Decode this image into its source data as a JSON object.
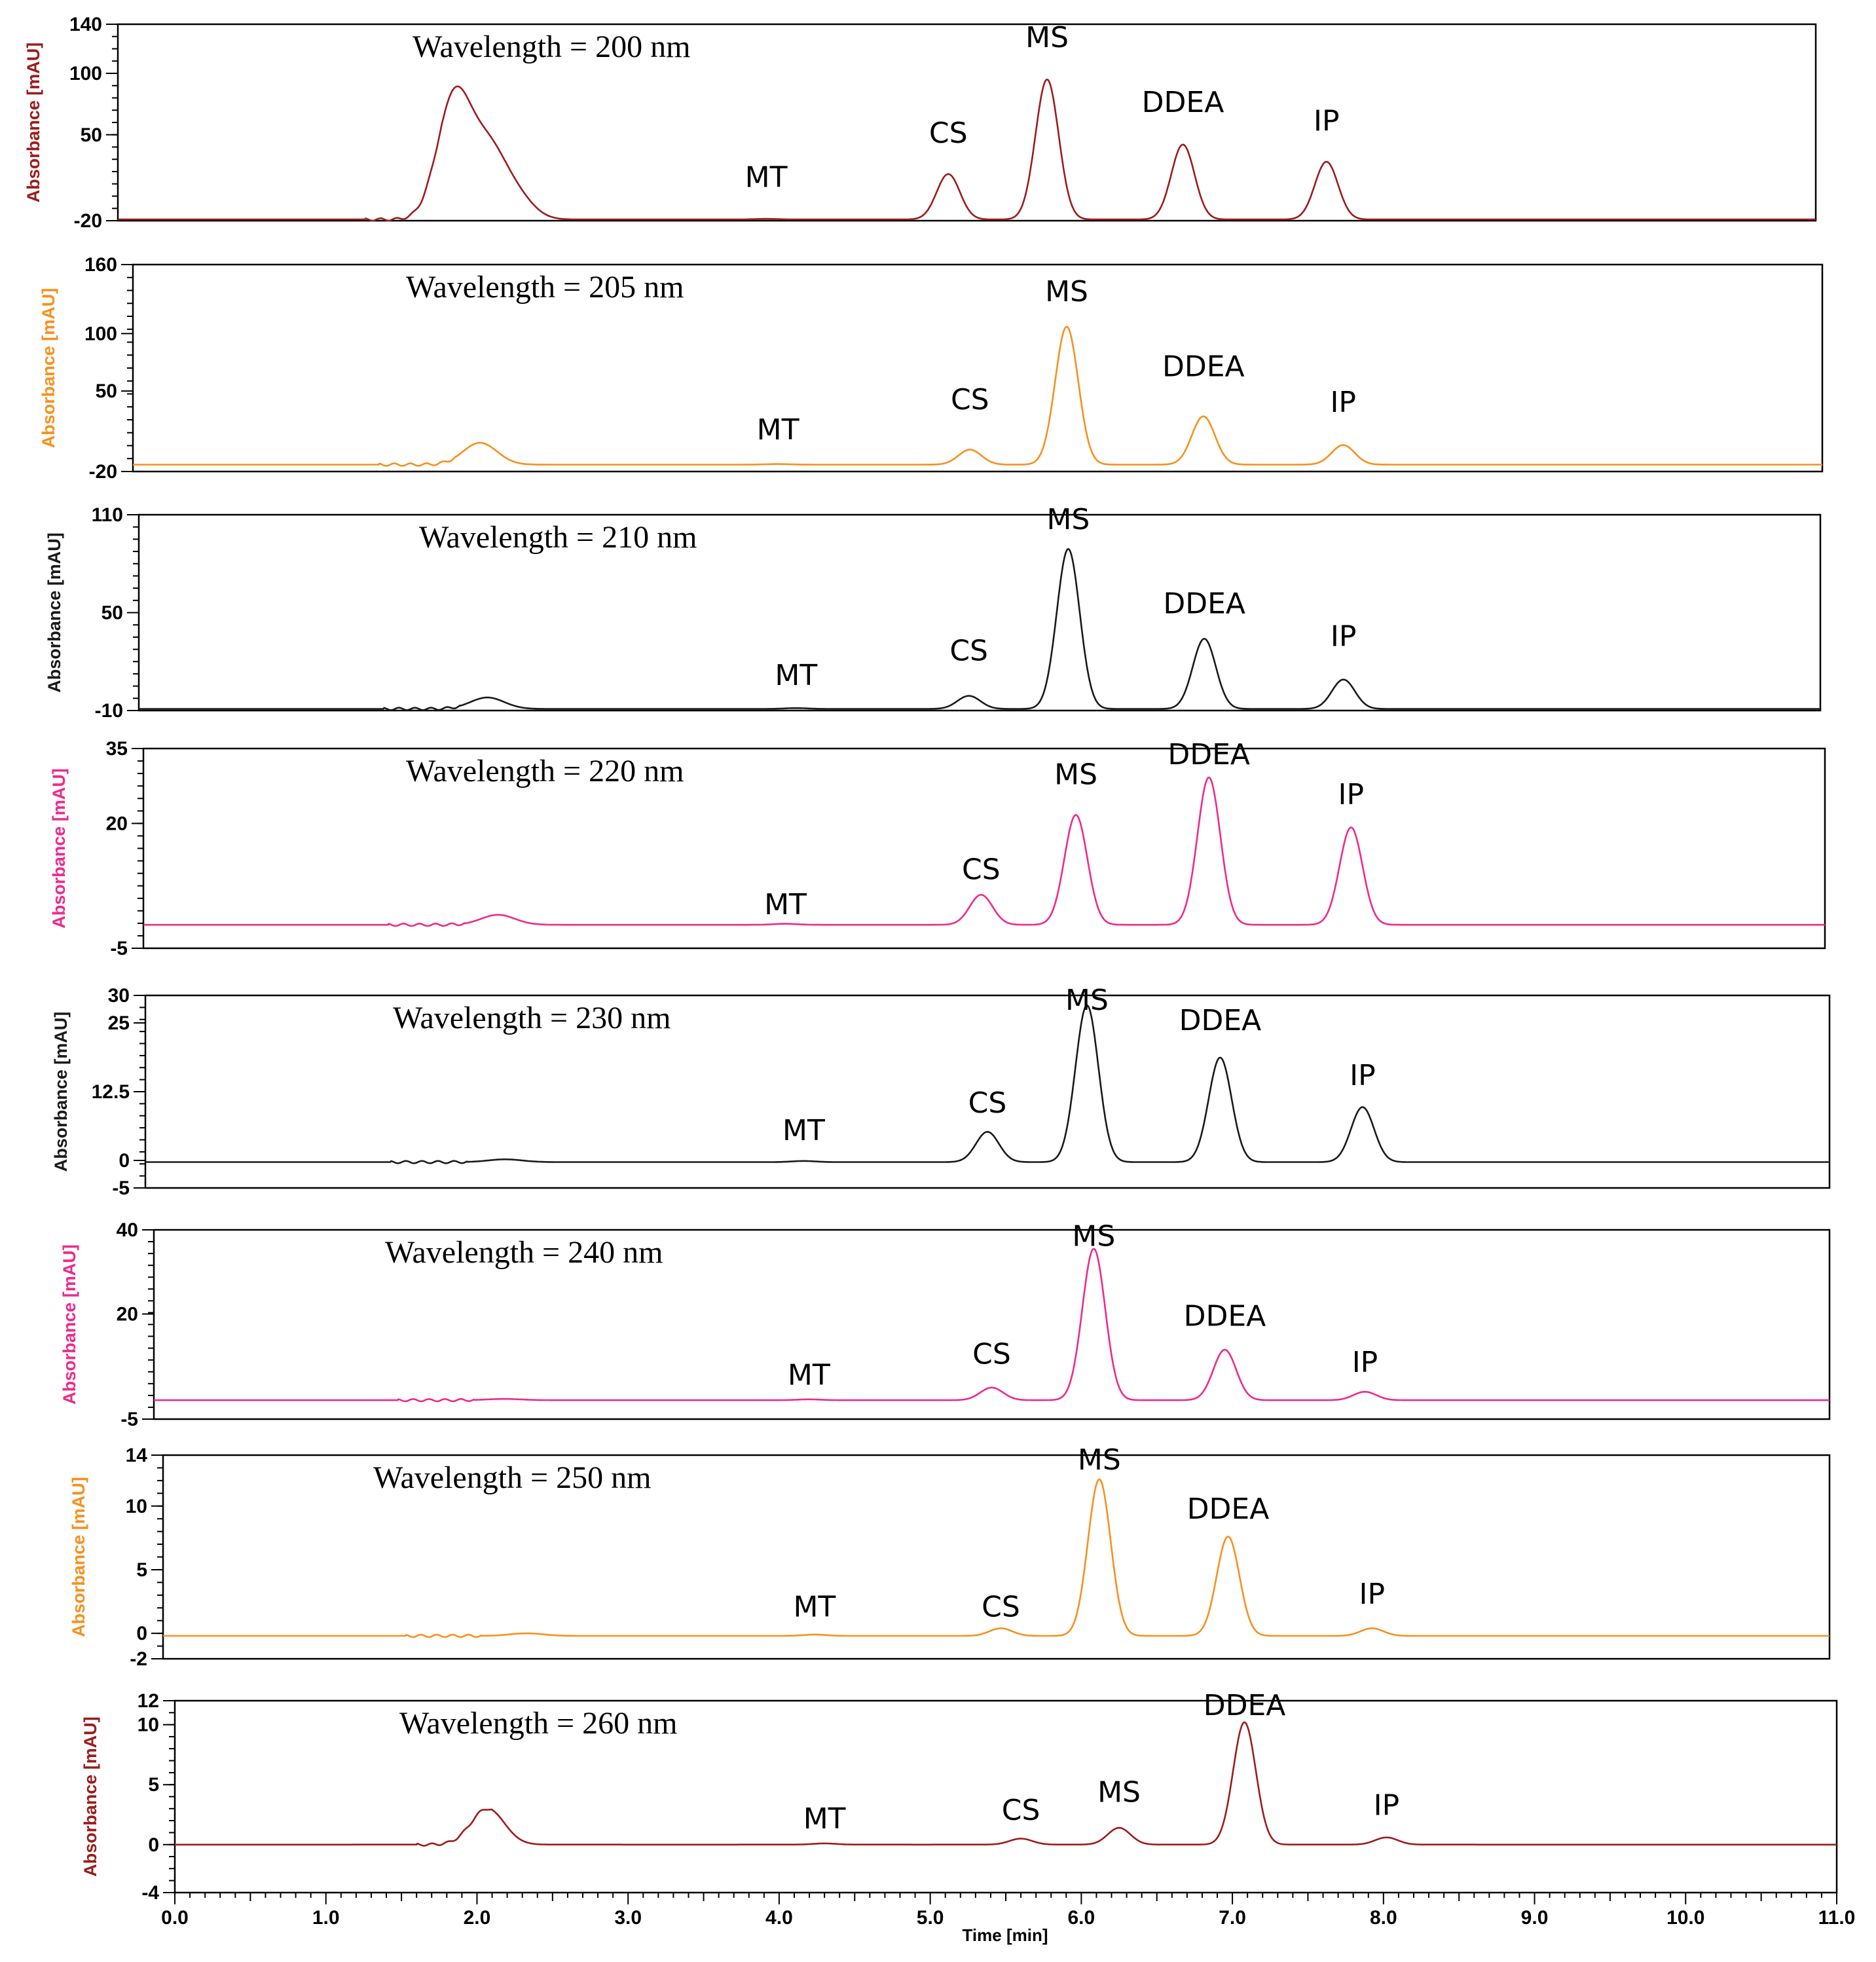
{
  "chart_data": {
    "type": "line",
    "xlabel": "Time [min]",
    "xlim": [
      0,
      11
    ],
    "xticks": [
      "0.0",
      "1.0",
      "2.0",
      "3.0",
      "4.0",
      "5.0",
      "6.0",
      "7.0",
      "8.0",
      "9.0",
      "10.0",
      "11.0"
    ],
    "panels": [
      {
        "title": "Wavelength = 200 nm",
        "ylabel": "Absorbance [mAU]",
        "color": "#9b1c1c",
        "ylim": [
          -20,
          140
        ],
        "yticks": [
          {
            "value": 140,
            "label": "140"
          },
          {
            "value": 100,
            "label": "100"
          },
          {
            "value": 50,
            "label": "50"
          },
          {
            "value": -20,
            "label": "-20"
          }
        ],
        "baseline": -19,
        "peaks": [
          {
            "name": "MT",
            "rt": 4.2,
            "height": 0.5,
            "label_height": 0
          },
          {
            "name": "CS",
            "rt": 5.38,
            "height": 37,
            "label_height": 36
          },
          {
            "name": "MS",
            "rt": 6.02,
            "height": 114,
            "label_height": 114
          },
          {
            "name": "DDEA",
            "rt": 6.9,
            "height": 61,
            "label_height": 61
          },
          {
            "name": "IP",
            "rt": 7.83,
            "height": 47,
            "label_height": 46
          }
        ],
        "solvent_front": [
          {
            "rt": 2.18,
            "height": 100
          },
          {
            "rt": 2.4,
            "height": 52
          },
          {
            "rt": 2.58,
            "height": 18
          }
        ]
      },
      {
        "title": "Wavelength = 205 nm",
        "ylabel": "Absorbance [mAU]",
        "color": "#f5911e",
        "ylim": [
          -20,
          160
        ],
        "yticks": [
          {
            "value": 160,
            "label": "160"
          },
          {
            "value": 100,
            "label": "100"
          },
          {
            "value": 50,
            "label": "50"
          },
          {
            "value": -20,
            "label": "-20"
          }
        ],
        "baseline": -14,
        "peaks": [
          {
            "name": "MT",
            "rt": 4.2,
            "height": 0.5,
            "label_height": 0
          },
          {
            "name": "CS",
            "rt": 5.45,
            "height": 13,
            "label_height": 26
          },
          {
            "name": "MS",
            "rt": 6.08,
            "height": 120,
            "label_height": 120
          },
          {
            "name": "DDEA",
            "rt": 6.97,
            "height": 42,
            "label_height": 55
          },
          {
            "name": "IP",
            "rt": 7.88,
            "height": 17,
            "label_height": 24
          }
        ],
        "solvent_front": [
          {
            "rt": 2.26,
            "height": 19
          }
        ]
      },
      {
        "title": "Wavelength = 210 nm",
        "ylabel": "Absorbance [mAU]",
        "color": "#1a1a1a",
        "ylim": [
          -10,
          110
        ],
        "yticks": [
          {
            "value": 110,
            "label": "110"
          },
          {
            "value": 50,
            "label": "50"
          },
          {
            "value": -10,
            "label": "-10"
          }
        ],
        "baseline": -9,
        "peaks": [
          {
            "name": "MT",
            "rt": 4.3,
            "height": 0.5,
            "label_height": 0
          },
          {
            "name": "CS",
            "rt": 5.43,
            "height": 8,
            "label_height": 15
          },
          {
            "name": "MS",
            "rt": 6.08,
            "height": 98,
            "label_height": 96
          },
          {
            "name": "DDEA",
            "rt": 6.97,
            "height": 43,
            "label_height": 44
          },
          {
            "name": "IP",
            "rt": 7.88,
            "height": 18,
            "label_height": 24
          }
        ],
        "solvent_front": [
          {
            "rt": 2.28,
            "height": 7
          }
        ]
      },
      {
        "title": "Wavelength = 220 nm",
        "ylabel": "Absorbance [mAU]",
        "color": "#ee2a8a",
        "ylim": [
          -5,
          35
        ],
        "yticks": [
          {
            "value": 35,
            "label": "35"
          },
          {
            "value": 20,
            "label": "20"
          },
          {
            "value": -5,
            "label": "-5"
          }
        ],
        "baseline": -0.3,
        "peaks": [
          {
            "name": "MT",
            "rt": 4.2,
            "height": 0.2,
            "label_height": 0
          },
          {
            "name": "CS",
            "rt": 5.48,
            "height": 6,
            "label_height": 7
          },
          {
            "name": "MS",
            "rt": 6.1,
            "height": 22,
            "label_height": 26
          },
          {
            "name": "DDEA",
            "rt": 6.97,
            "height": 29.5,
            "label_height": 30
          },
          {
            "name": "IP",
            "rt": 7.9,
            "height": 19.5,
            "label_height": 22
          }
        ],
        "solvent_front": [
          {
            "rt": 2.32,
            "height": 2
          }
        ]
      },
      {
        "title": "Wavelength = 230 nm",
        "ylabel": "Absorbance [mAU]",
        "color": "#1a1a1a",
        "ylim": [
          -5,
          30
        ],
        "yticks": [
          {
            "value": 30,
            "label": "30"
          },
          {
            "value": 25,
            "label": "25"
          },
          {
            "value": 12.5,
            "label": "12.5"
          },
          {
            "value": 0,
            "label": "0"
          },
          {
            "value": -5,
            "label": "-5"
          }
        ],
        "baseline": -0.3,
        "peaks": [
          {
            "name": "MT",
            "rt": 4.3,
            "height": 0.2,
            "label_height": 2
          },
          {
            "name": "CS",
            "rt": 5.5,
            "height": 5.5,
            "label_height": 7
          },
          {
            "name": "MS",
            "rt": 6.15,
            "height": 28.5,
            "label_height": 28
          },
          {
            "name": "DDEA",
            "rt": 7.02,
            "height": 19,
            "label_height": 22
          },
          {
            "name": "IP",
            "rt": 7.95,
            "height": 10,
            "label_height": 12
          }
        ],
        "solvent_front": [
          {
            "rt": 2.35,
            "height": 0.5
          }
        ]
      },
      {
        "title": "Wavelength = 240 nm",
        "ylabel": "Absorbance [mAU]",
        "color": "#ee2a8a",
        "ylim": [
          -5,
          40
        ],
        "yticks": [
          {
            "value": 40,
            "label": "40"
          },
          {
            "value": 20,
            "label": "20"
          },
          {
            "value": -5,
            "label": "-5"
          }
        ],
        "baseline": -0.5,
        "peaks": [
          {
            "name": "MT",
            "rt": 4.3,
            "height": 0.2,
            "label_height": 1
          },
          {
            "name": "CS",
            "rt": 5.5,
            "height": 3,
            "label_height": 6
          },
          {
            "name": "MS",
            "rt": 6.17,
            "height": 36,
            "label_height": 34
          },
          {
            "name": "DDEA",
            "rt": 7.03,
            "height": 12,
            "label_height": 15
          },
          {
            "name": "IP",
            "rt": 7.95,
            "height": 2,
            "label_height": 4
          }
        ],
        "solvent_front": [
          {
            "rt": 2.3,
            "height": 0.3
          }
        ]
      },
      {
        "title": "Wavelength = 250 nm",
        "ylabel": "Absorbance [mAU]",
        "color": "#f5911e",
        "ylim": [
          -2,
          14
        ],
        "yticks": [
          {
            "value": 14,
            "label": "14"
          },
          {
            "value": 10,
            "label": "10"
          },
          {
            "value": 5,
            "label": "5"
          },
          {
            "value": 0,
            "label": "0"
          },
          {
            "value": -2,
            "label": "-2"
          }
        ],
        "baseline": -0.2,
        "peaks": [
          {
            "name": "MT",
            "rt": 4.3,
            "height": 0.1,
            "label_height": 0.6
          },
          {
            "name": "CS",
            "rt": 5.53,
            "height": 0.6,
            "label_height": 0.6
          },
          {
            "name": "MS",
            "rt": 6.18,
            "height": 12.3,
            "label_height": 12.5
          },
          {
            "name": "DDEA",
            "rt": 7.03,
            "height": 7.8,
            "label_height": 8.3
          },
          {
            "name": "IP",
            "rt": 7.98,
            "height": 0.6,
            "label_height": 1.6
          }
        ],
        "solvent_front": [
          {
            "rt": 2.4,
            "height": 0.2
          }
        ]
      },
      {
        "title": "Wavelength = 260 nm",
        "ylabel": "Absorbance [mAU]",
        "color": "#9b1c1c",
        "ylim": [
          -4,
          12
        ],
        "yticks": [
          {
            "value": 12,
            "label": "12"
          },
          {
            "value": 10,
            "label": "10"
          },
          {
            "value": 5,
            "label": "5"
          },
          {
            "value": 0,
            "label": "0"
          },
          {
            "value": -4,
            "label": "-4"
          }
        ],
        "baseline": 0,
        "peaks": [
          {
            "name": "MT",
            "rt": 4.3,
            "height": 0.1,
            "label_height": 0.6
          },
          {
            "name": "CS",
            "rt": 5.6,
            "height": 0.5,
            "label_height": 1.3
          },
          {
            "name": "MS",
            "rt": 6.25,
            "height": 1.4,
            "label_height": 2.8
          },
          {
            "name": "DDEA",
            "rt": 7.08,
            "height": 10.2,
            "label_height": 10.7
          },
          {
            "name": "IP",
            "rt": 8.02,
            "height": 0.6,
            "label_height": 1.7
          }
        ],
        "solvent_front": [
          {
            "rt": 2.07,
            "height": 3
          }
        ]
      }
    ]
  }
}
